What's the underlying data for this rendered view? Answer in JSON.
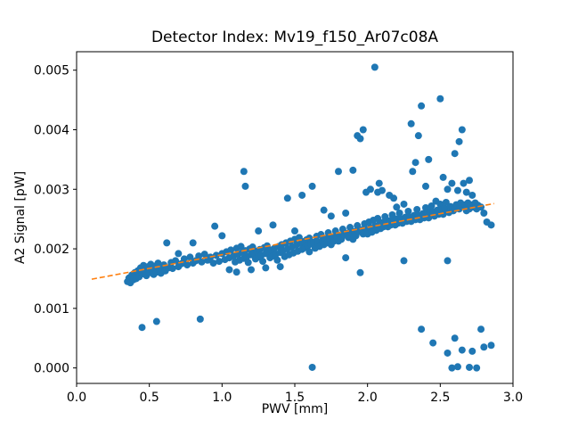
{
  "figure": {
    "title": "Detector Index: Mv19_f150_Ar07c08A"
  },
  "axes": {
    "xlabel": "PWV [mm]",
    "ylabel": "A2 Signal [pW]"
  },
  "chart_data": {
    "type": "scatter",
    "title": "Detector Index: Mv19_f150_Ar07c08A",
    "xlabel": "PWV [mm]",
    "ylabel": "A2 Signal [pW]",
    "xlim": [
      0.0,
      3.0
    ],
    "ylim": [
      -0.00026,
      0.00531
    ],
    "grid": false,
    "legend": null,
    "marker_color": "#1f77b4",
    "x_tick_labels": [
      "0.0",
      "0.5",
      "1.0",
      "1.5",
      "2.0",
      "2.5",
      "3.0"
    ],
    "x_ticks": [
      0.0,
      0.5,
      1.0,
      1.5,
      2.0,
      2.5,
      3.0
    ],
    "y_tick_labels": [
      "0.000",
      "0.001",
      "0.002",
      "0.003",
      "0.004",
      "0.005"
    ],
    "y_ticks": [
      0.0,
      0.001,
      0.002,
      0.003,
      0.004,
      0.005
    ],
    "trendline": {
      "style": "dashed",
      "color": "#ff7f0e",
      "x1": 0.104,
      "y1": 0.00149,
      "x2": 2.87,
      "y2": 0.00276
    },
    "points": [
      [
        0.35,
        0.00145
      ],
      [
        0.36,
        0.00151
      ],
      [
        0.37,
        0.00143
      ],
      [
        0.38,
        0.00156
      ],
      [
        0.39,
        0.00148
      ],
      [
        0.4,
        0.0016
      ],
      [
        0.41,
        0.0015
      ],
      [
        0.42,
        0.00163
      ],
      [
        0.43,
        0.00153
      ],
      [
        0.44,
        0.00168
      ],
      [
        0.45,
        0.00158
      ],
      [
        0.45,
        0.00068
      ],
      [
        0.46,
        0.00172
      ],
      [
        0.47,
        0.00162
      ],
      [
        0.48,
        0.00155
      ],
      [
        0.49,
        0.0017
      ],
      [
        0.5,
        0.0016
      ],
      [
        0.51,
        0.00174
      ],
      [
        0.52,
        0.00164
      ],
      [
        0.53,
        0.00157
      ],
      [
        0.54,
        0.00171
      ],
      [
        0.55,
        0.00161
      ],
      [
        0.55,
        0.00078
      ],
      [
        0.56,
        0.00176
      ],
      [
        0.57,
        0.00166
      ],
      [
        0.58,
        0.00159
      ],
      [
        0.6,
        0.00173
      ],
      [
        0.61,
        0.00163
      ],
      [
        0.62,
        0.0021
      ],
      [
        0.63,
        0.00168
      ],
      [
        0.65,
        0.00177
      ],
      [
        0.66,
        0.00167
      ],
      [
        0.68,
        0.0018
      ],
      [
        0.7,
        0.0017
      ],
      [
        0.7,
        0.00192
      ],
      [
        0.72,
        0.00175
      ],
      [
        0.74,
        0.00183
      ],
      [
        0.76,
        0.00173
      ],
      [
        0.78,
        0.00186
      ],
      [
        0.8,
        0.00176
      ],
      [
        0.8,
        0.0021
      ],
      [
        0.82,
        0.0018
      ],
      [
        0.84,
        0.00188
      ],
      [
        0.85,
        0.00082
      ],
      [
        0.86,
        0.00178
      ],
      [
        0.88,
        0.00191
      ],
      [
        0.9,
        0.00181
      ],
      [
        0.92,
        0.00186
      ],
      [
        0.94,
        0.00176
      ],
      [
        0.95,
        0.00238
      ],
      [
        0.96,
        0.00189
      ],
      [
        0.98,
        0.00179
      ],
      [
        1.0,
        0.00192
      ],
      [
        1.0,
        0.00222
      ],
      [
        1.02,
        0.00182
      ],
      [
        1.03,
        0.00195
      ],
      [
        1.05,
        0.00185
      ],
      [
        1.05,
        0.00165
      ],
      [
        1.06,
        0.00198
      ],
      [
        1.08,
        0.00188
      ],
      [
        1.09,
        0.00178
      ],
      [
        1.1,
        0.00201
      ],
      [
        1.1,
        0.00161
      ],
      [
        1.11,
        0.00191
      ],
      [
        1.12,
        0.00181
      ],
      [
        1.13,
        0.00204
      ],
      [
        1.14,
        0.00194
      ],
      [
        1.15,
        0.0033
      ],
      [
        1.15,
        0.00184
      ],
      [
        1.16,
        0.00305
      ],
      [
        1.16,
        0.00197
      ],
      [
        1.17,
        0.00187
      ],
      [
        1.18,
        0.00177
      ],
      [
        1.19,
        0.002
      ],
      [
        1.2,
        0.0019
      ],
      [
        1.2,
        0.00165
      ],
      [
        1.21,
        0.00203
      ],
      [
        1.22,
        0.00193
      ],
      [
        1.23,
        0.00183
      ],
      [
        1.24,
        0.00196
      ],
      [
        1.25,
        0.00186
      ],
      [
        1.25,
        0.0023
      ],
      [
        1.26,
        0.00199
      ],
      [
        1.27,
        0.00189
      ],
      [
        1.28,
        0.00179
      ],
      [
        1.29,
        0.00202
      ],
      [
        1.3,
        0.00192
      ],
      [
        1.3,
        0.00168
      ],
      [
        1.31,
        0.00205
      ],
      [
        1.32,
        0.00195
      ],
      [
        1.33,
        0.00185
      ],
      [
        1.34,
        0.00198
      ],
      [
        1.35,
        0.00188
      ],
      [
        1.35,
        0.0024
      ],
      [
        1.36,
        0.00201
      ],
      [
        1.37,
        0.00191
      ],
      [
        1.38,
        0.00181
      ],
      [
        1.39,
        0.00204
      ],
      [
        1.4,
        0.00194
      ],
      [
        1.4,
        0.0017
      ],
      [
        1.41,
        0.00207
      ],
      [
        1.42,
        0.00197
      ],
      [
        1.43,
        0.00187
      ],
      [
        1.44,
        0.0021
      ],
      [
        1.45,
        0.002
      ],
      [
        1.45,
        0.00285
      ],
      [
        1.46,
        0.0019
      ],
      [
        1.47,
        0.00213
      ],
      [
        1.48,
        0.00203
      ],
      [
        1.49,
        0.00193
      ],
      [
        1.5,
        0.00216
      ],
      [
        1.5,
        0.0023
      ],
      [
        1.51,
        0.00206
      ],
      [
        1.52,
        0.00196
      ],
      [
        1.53,
        0.00219
      ],
      [
        1.54,
        0.00209
      ],
      [
        1.55,
        0.00199
      ],
      [
        1.55,
        0.0029
      ],
      [
        1.56,
        0.00212
      ],
      [
        1.57,
        0.00202
      ],
      [
        1.58,
        0.00215
      ],
      [
        1.59,
        0.00205
      ],
      [
        1.6,
        0.00195
      ],
      [
        1.6,
        0.00218
      ],
      [
        1.61,
        0.00208
      ],
      [
        1.62,
        1e-05
      ],
      [
        1.62,
        0.00305
      ],
      [
        1.63,
        0.00211
      ],
      [
        1.64,
        0.00201
      ],
      [
        1.65,
        0.00221
      ],
      [
        1.66,
        0.00211
      ],
      [
        1.67,
        0.00204
      ],
      [
        1.68,
        0.00224
      ],
      [
        1.69,
        0.00214
      ],
      [
        1.7,
        0.00207
      ],
      [
        1.7,
        0.00265
      ],
      [
        1.71,
        0.00217
      ],
      [
        1.72,
        0.0021
      ],
      [
        1.73,
        0.00227
      ],
      [
        1.74,
        0.00217
      ],
      [
        1.75,
        0.00255
      ],
      [
        1.75,
        0.00207
      ],
      [
        1.76,
        0.0022
      ],
      [
        1.77,
        0.00213
      ],
      [
        1.78,
        0.0023
      ],
      [
        1.79,
        0.0022
      ],
      [
        1.8,
        0.0033
      ],
      [
        1.8,
        0.00213
      ],
      [
        1.81,
        0.00223
      ],
      [
        1.82,
        0.00216
      ],
      [
        1.83,
        0.00233
      ],
      [
        1.84,
        0.00223
      ],
      [
        1.85,
        0.0026
      ],
      [
        1.85,
        0.00185
      ],
      [
        1.86,
        0.00226
      ],
      [
        1.87,
        0.00219
      ],
      [
        1.88,
        0.00236
      ],
      [
        1.89,
        0.00226
      ],
      [
        1.9,
        0.00332
      ],
      [
        1.9,
        0.00216
      ],
      [
        1.91,
        0.00229
      ],
      [
        1.92,
        0.00222
      ],
      [
        1.93,
        0.0039
      ],
      [
        1.93,
        0.00239
      ],
      [
        1.94,
        0.00229
      ],
      [
        1.95,
        0.00385
      ],
      [
        1.95,
        0.0016
      ],
      [
        1.96,
        0.00232
      ],
      [
        1.97,
        0.004
      ],
      [
        1.97,
        0.00225
      ],
      [
        1.98,
        0.00242
      ],
      [
        1.99,
        0.00295
      ],
      [
        2.0,
        0.00232
      ],
      [
        2.0,
        0.00225
      ],
      [
        2.01,
        0.00245
      ],
      [
        2.02,
        0.003
      ],
      [
        2.02,
        0.00235
      ],
      [
        2.03,
        0.00228
      ],
      [
        2.04,
        0.00248
      ],
      [
        2.05,
        0.00505
      ],
      [
        2.05,
        0.00238
      ],
      [
        2.06,
        0.00231
      ],
      [
        2.07,
        0.00295
      ],
      [
        2.07,
        0.00251
      ],
      [
        2.08,
        0.0031
      ],
      [
        2.08,
        0.00241
      ],
      [
        2.09,
        0.00234
      ],
      [
        2.1,
        0.00298
      ],
      [
        2.1,
        0.00244
      ],
      [
        2.11,
        0.00237
      ],
      [
        2.12,
        0.00254
      ],
      [
        2.13,
        0.00244
      ],
      [
        2.14,
        0.00237
      ],
      [
        2.15,
        0.0029
      ],
      [
        2.15,
        0.00247
      ],
      [
        2.16,
        0.0024
      ],
      [
        2.17,
        0.00257
      ],
      [
        2.18,
        0.00285
      ],
      [
        2.18,
        0.00247
      ],
      [
        2.19,
        0.0024
      ],
      [
        2.2,
        0.0027
      ],
      [
        2.2,
        0.0025
      ],
      [
        2.21,
        0.00243
      ],
      [
        2.22,
        0.0026
      ],
      [
        2.23,
        0.0025
      ],
      [
        2.24,
        0.00243
      ],
      [
        2.25,
        0.00275
      ],
      [
        2.25,
        0.0018
      ],
      [
        2.26,
        0.00253
      ],
      [
        2.27,
        0.00246
      ],
      [
        2.28,
        0.00263
      ],
      [
        2.29,
        0.00253
      ],
      [
        2.3,
        0.0041
      ],
      [
        2.3,
        0.00246
      ],
      [
        2.31,
        0.0033
      ],
      [
        2.32,
        0.00256
      ],
      [
        2.33,
        0.00345
      ],
      [
        2.33,
        0.00249
      ],
      [
        2.34,
        0.00266
      ],
      [
        2.35,
        0.0039
      ],
      [
        2.35,
        0.00256
      ],
      [
        2.36,
        0.00249
      ],
      [
        2.37,
        0.0044
      ],
      [
        2.37,
        0.00065
      ],
      [
        2.38,
        0.00259
      ],
      [
        2.39,
        0.00252
      ],
      [
        2.4,
        0.00305
      ],
      [
        2.4,
        0.00269
      ],
      [
        2.41,
        0.00259
      ],
      [
        2.42,
        0.0035
      ],
      [
        2.42,
        0.00252
      ],
      [
        2.43,
        0.00262
      ],
      [
        2.44,
        0.00272
      ],
      [
        2.45,
        0.00042
      ],
      [
        2.45,
        0.00262
      ],
      [
        2.46,
        0.00255
      ],
      [
        2.47,
        0.0028
      ],
      [
        2.48,
        0.00265
      ],
      [
        2.49,
        0.00258
      ],
      [
        2.5,
        0.00452
      ],
      [
        2.5,
        0.00275
      ],
      [
        2.51,
        0.00265
      ],
      [
        2.52,
        0.0032
      ],
      [
        2.52,
        0.00258
      ],
      [
        2.53,
        0.00268
      ],
      [
        2.54,
        0.00278
      ],
      [
        2.55,
        0.003
      ],
      [
        2.55,
        0.00025
      ],
      [
        2.55,
        0.0018
      ],
      [
        2.56,
        0.00261
      ],
      [
        2.57,
        0.00271
      ],
      [
        2.58,
        0.0031
      ],
      [
        2.58,
        0.0
      ],
      [
        2.59,
        0.00264
      ],
      [
        2.6,
        0.0036
      ],
      [
        2.6,
        0.0005
      ],
      [
        2.6,
        0.00268
      ],
      [
        2.61,
        0.00274
      ],
      [
        2.62,
        0.00298
      ],
      [
        2.62,
        2e-05
      ],
      [
        2.63,
        0.0038
      ],
      [
        2.63,
        0.00267
      ],
      [
        2.64,
        0.00277
      ],
      [
        2.65,
        0.004
      ],
      [
        2.65,
        0.0003
      ],
      [
        2.65,
        0.00271
      ],
      [
        2.66,
        0.0031
      ],
      [
        2.67,
        0.00274
      ],
      [
        2.68,
        0.00295
      ],
      [
        2.68,
        0.00264
      ],
      [
        2.69,
        0.00277
      ],
      [
        2.7,
        0.00315
      ],
      [
        2.7,
        1e-05
      ],
      [
        2.7,
        0.00267
      ],
      [
        2.71,
        0.00274
      ],
      [
        2.72,
        0.0029
      ],
      [
        2.72,
        0.00028
      ],
      [
        2.73,
        0.0027
      ],
      [
        2.74,
        0.00277
      ],
      [
        2.75,
        0.0
      ],
      [
        2.75,
        0.00267
      ],
      [
        2.76,
        0.00273
      ],
      [
        2.78,
        0.00065
      ],
      [
        2.78,
        0.0027
      ],
      [
        2.8,
        0.00035
      ],
      [
        2.8,
        0.0026
      ],
      [
        2.82,
        0.00245
      ],
      [
        2.85,
        0.00038
      ],
      [
        2.85,
        0.0024
      ]
    ]
  }
}
